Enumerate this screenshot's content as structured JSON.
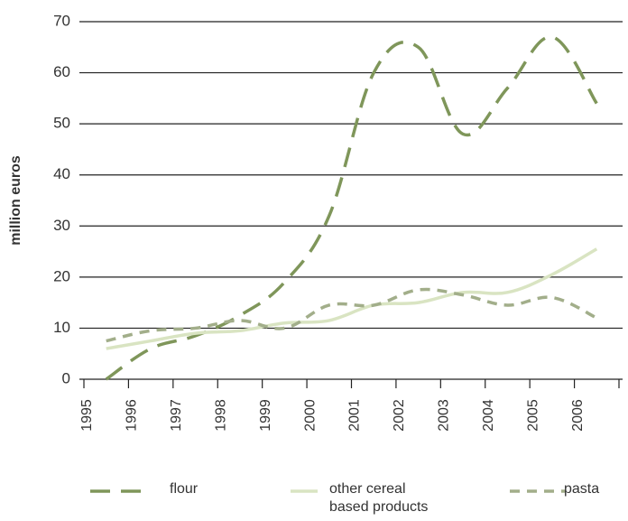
{
  "chart_data": {
    "type": "line",
    "y_axis_label": "million euros",
    "categories": [
      "1995",
      "1996",
      "1997",
      "1998",
      "1999",
      "2000",
      "2001",
      "2002",
      "2003",
      "2004",
      "2005",
      "2006"
    ],
    "series": [
      {
        "name": "flour",
        "color": "#7f965a",
        "dash": "22 12",
        "values": [
          0,
          6,
          8.5,
          12.5,
          19,
          32,
          60,
          65,
          48,
          57,
          67,
          54
        ]
      },
      {
        "name": "other cereal based products",
        "color": "#d9e4c2",
        "dash": "none",
        "values": [
          6,
          7.5,
          9,
          9.5,
          11,
          11.5,
          14.5,
          15,
          17,
          17,
          20.5,
          25.5
        ]
      },
      {
        "name": "pasta",
        "color": "#a2ae8a",
        "dash": "11 8",
        "values": [
          7.5,
          9.5,
          10,
          11.5,
          10,
          14.5,
          14.5,
          17.5,
          16.5,
          14.5,
          16,
          12
        ]
      }
    ],
    "ylim": [
      0,
      70
    ],
    "yticks": [
      0,
      10,
      20,
      30,
      40,
      50,
      60,
      70
    ],
    "grid": true
  }
}
